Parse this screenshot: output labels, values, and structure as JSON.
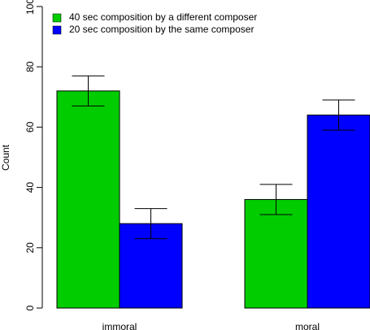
{
  "chart_data": {
    "type": "bar",
    "ylabel": "Count",
    "categories": [
      "immoral",
      "moral"
    ],
    "series": [
      {
        "name": "40 sec composition by a different composer",
        "color": "#00cc00",
        "values": [
          72,
          36
        ],
        "errors": [
          5,
          5
        ]
      },
      {
        "name": "20 sec composition by the same composer",
        "color": "#0000ff",
        "values": [
          28,
          64
        ],
        "errors": [
          5,
          5
        ]
      }
    ],
    "ylim": [
      0,
      100
    ],
    "yticks": [
      0,
      20,
      40,
      60,
      80,
      100
    ],
    "legend": "upper left"
  }
}
